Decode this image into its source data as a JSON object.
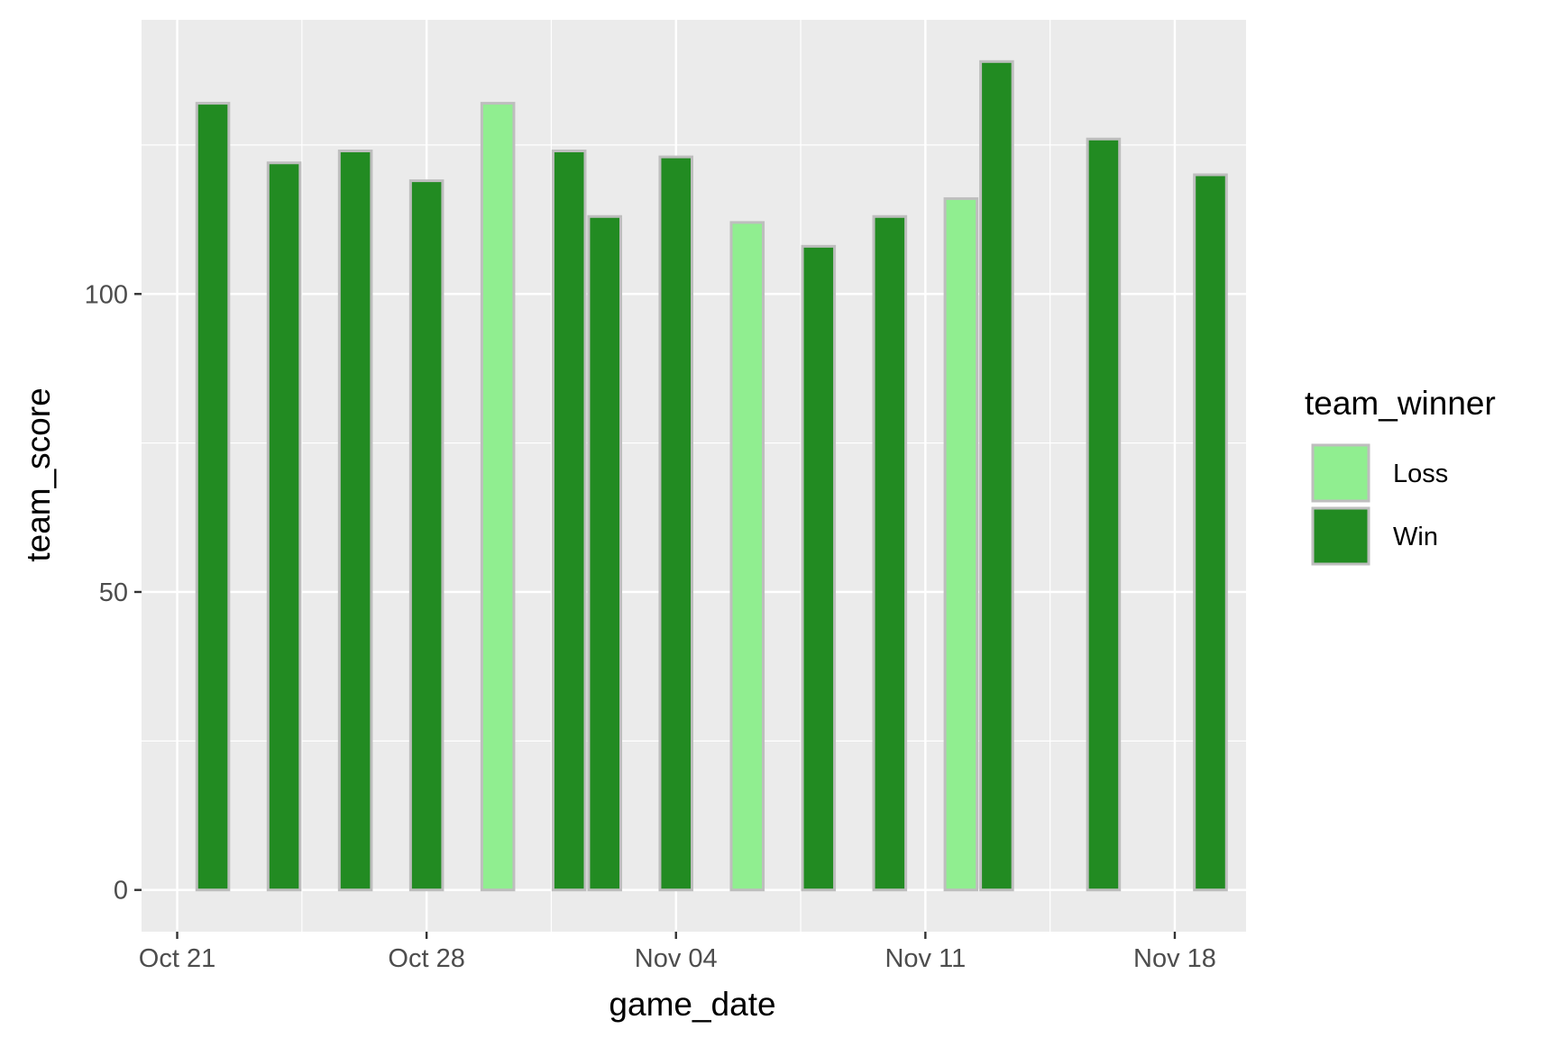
{
  "chart_data": {
    "type": "bar",
    "xlabel": "game_date",
    "ylabel": "team_score",
    "x_ticks": [
      {
        "date": "2023-10-21",
        "label": "Oct 21"
      },
      {
        "date": "2023-10-28",
        "label": "Oct 28"
      },
      {
        "date": "2023-11-04",
        "label": "Nov 04"
      },
      {
        "date": "2023-11-11",
        "label": "Nov 11"
      },
      {
        "date": "2023-11-18",
        "label": "Nov 18"
      }
    ],
    "y_ticks": [
      0,
      50,
      100
    ],
    "xlim": [
      "2023-10-20",
      "2023-11-20"
    ],
    "ylim": [
      -7,
      146
    ],
    "grid": true,
    "legend": {
      "title": "team_winner",
      "position": "right",
      "entries": [
        {
          "label": "Loss",
          "color": "#90ee90"
        },
        {
          "label": "Win",
          "color": "#228b22"
        }
      ]
    },
    "bar_outline_color": "#bebebe",
    "panel_background": "#ebebeb",
    "grid_color": "#ffffff",
    "bars": [
      {
        "date": "2023-10-22",
        "value": 132,
        "winner": "Win"
      },
      {
        "date": "2023-10-24",
        "value": 122,
        "winner": "Win"
      },
      {
        "date": "2023-10-26",
        "value": 124,
        "winner": "Win"
      },
      {
        "date": "2023-10-28",
        "value": 119,
        "winner": "Win"
      },
      {
        "date": "2023-10-30",
        "value": 132,
        "winner": "Loss"
      },
      {
        "date": "2023-11-01",
        "value": 124,
        "winner": "Win"
      },
      {
        "date": "2023-11-02",
        "value": 113,
        "winner": "Win"
      },
      {
        "date": "2023-11-04",
        "value": 123,
        "winner": "Win"
      },
      {
        "date": "2023-11-06",
        "value": 112,
        "winner": "Loss"
      },
      {
        "date": "2023-11-08",
        "value": 108,
        "winner": "Win"
      },
      {
        "date": "2023-11-10",
        "value": 113,
        "winner": "Win"
      },
      {
        "date": "2023-11-12",
        "value": 116,
        "winner": "Loss"
      },
      {
        "date": "2023-11-13",
        "value": 139,
        "winner": "Win"
      },
      {
        "date": "2023-11-16",
        "value": 126,
        "winner": "Win"
      },
      {
        "date": "2023-11-19",
        "value": 120,
        "winner": "Win"
      }
    ]
  }
}
